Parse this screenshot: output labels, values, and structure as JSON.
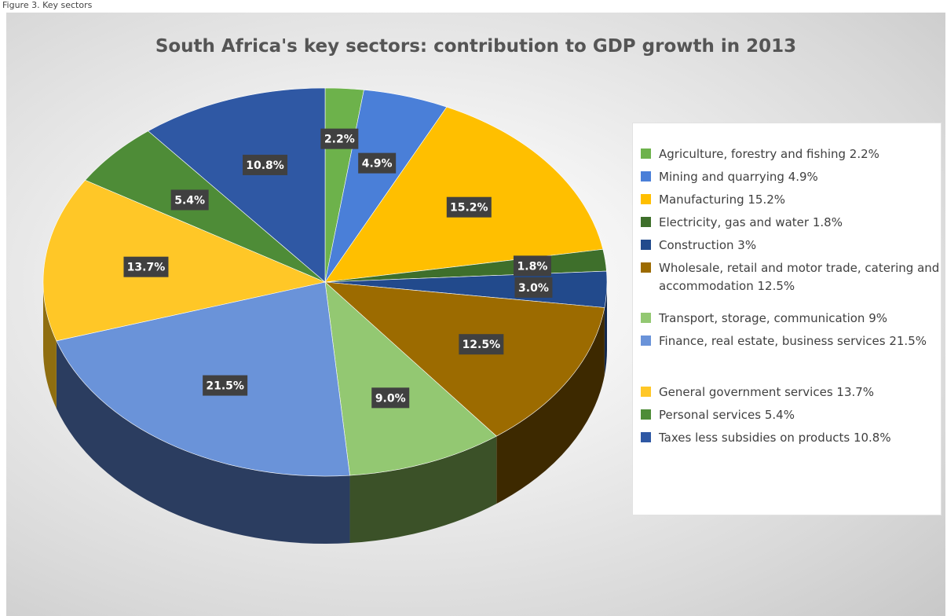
{
  "caption": "Figure 3. Key sectors",
  "chart_data": {
    "type": "pie",
    "title": "South Africa's key sectors: contribution to GDP growth in 2013",
    "legend_position": "right",
    "slices": [
      {
        "label": "Agriculture, forestry and fishing 2.2%",
        "value": 2.2,
        "data_label": "2.2%",
        "color": "#6db24b",
        "side": "#3c6b27"
      },
      {
        "label": "Mining and quarrying 4.9%",
        "value": 4.9,
        "data_label": "4.9%",
        "color": "#4a7fd8",
        "side": "#2c4f8f"
      },
      {
        "label": "Manufacturing 15.2%",
        "value": 15.2,
        "data_label": "15.2%",
        "color": "#ffbf00",
        "side": "#a07800"
      },
      {
        "label": "Electricity, gas and water 1.8%",
        "value": 1.8,
        "data_label": "1.8%",
        "color": "#3e6f2b",
        "side": "#1f3a15"
      },
      {
        "label": "Construction 3%",
        "value": 3.0,
        "data_label": "3.0%",
        "color": "#224a8c",
        "side": "#12284d"
      },
      {
        "label": "Wholesale, retail and motor trade, catering and accommodation 12.5%",
        "value": 12.5,
        "data_label": "12.5%",
        "color": "#9c6b00",
        "side": "#3d2900"
      },
      {
        "label": "Transport, storage, communication 9%",
        "value": 9.0,
        "data_label": "9.0%",
        "color": "#93c872",
        "side": "#3b5128"
      },
      {
        "label": "Finance, real estate, business services 21.5%",
        "value": 21.5,
        "data_label": "21.5%",
        "color": "#6a93d9",
        "side": "#2b3d60"
      },
      {
        "label": "General government services 13.7%",
        "value": 13.7,
        "data_label": "13.7%",
        "color": "#ffc727",
        "side": "#8f6e10"
      },
      {
        "label": "Personal services 5.4%",
        "value": 5.4,
        "data_label": "5.4%",
        "color": "#4e8c37",
        "side": "#2c5220"
      },
      {
        "label": "Taxes less subsidies on products 10.8%",
        "value": 10.8,
        "data_label": "10.8%",
        "color": "#2f58a4",
        "side": "#1b3566"
      }
    ]
  }
}
